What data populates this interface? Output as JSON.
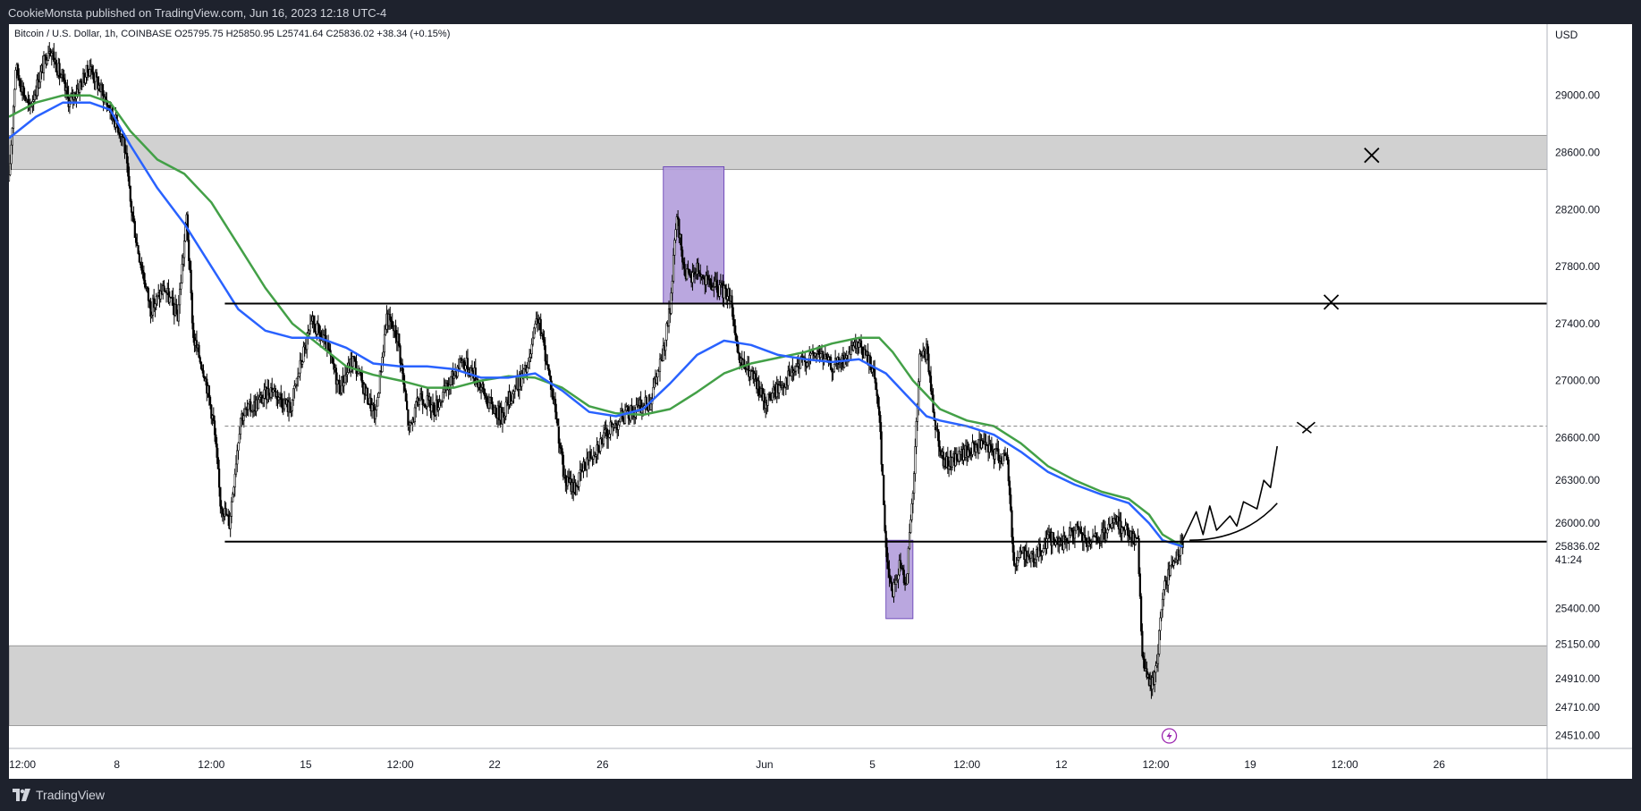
{
  "header": {
    "published": "CookieMonsta published on TradingView.com, Jun 16, 2023 12:18 UTC-4"
  },
  "footer": {
    "brand": "TradingView"
  },
  "chart_data": {
    "type": "candlestick",
    "legend": "Bitcoin / U.S. Dollar, 1h, COINBASE  O25795.75  H25850.95  L25741.64  C25836.02  +38.34 (+0.15%)",
    "currency": "USD",
    "x_range": [
      "2023-05-04T00:00",
      "2023-06-30T00:00"
    ],
    "ylim": [
      24420,
      29500
    ],
    "y_ticks": [
      {
        "value": 29000,
        "label": "29000.00"
      },
      {
        "value": 28600,
        "label": "28600.00"
      },
      {
        "value": 28200,
        "label": "28200.00"
      },
      {
        "value": 27800,
        "label": "27800.00"
      },
      {
        "value": 27400,
        "label": "27400.00"
      },
      {
        "value": 27000,
        "label": "27000.00"
      },
      {
        "value": 26600,
        "label": "26600.00"
      },
      {
        "value": 26300,
        "label": "26300.00"
      },
      {
        "value": 26000,
        "label": "26000.00"
      },
      {
        "value": 25400,
        "label": "25400.00"
      },
      {
        "value": 25150,
        "label": "25150.00"
      },
      {
        "value": 24910,
        "label": "24910.00"
      },
      {
        "value": 24710,
        "label": "24710.00"
      },
      {
        "value": 24510,
        "label": "24510.00"
      }
    ],
    "x_ticks": [
      {
        "x": "2023-05-04T12:00",
        "label": "12:00"
      },
      {
        "x": "2023-05-08T00:00",
        "label": "8"
      },
      {
        "x": "2023-05-11T12:00",
        "label": "12:00"
      },
      {
        "x": "2023-05-15T00:00",
        "label": "15"
      },
      {
        "x": "2023-05-18T12:00",
        "label": "12:00"
      },
      {
        "x": "2023-05-22T00:00",
        "label": "22"
      },
      {
        "x": "2023-05-26T00:00",
        "label": "26"
      },
      {
        "x": "2023-06-01T00:00",
        "label": "Jun"
      },
      {
        "x": "2023-06-05T00:00",
        "label": "5"
      },
      {
        "x": "2023-06-08T12:00",
        "label": "12:00"
      },
      {
        "x": "2023-06-12T00:00",
        "label": "12"
      },
      {
        "x": "2023-06-15T12:00",
        "label": "12:00"
      },
      {
        "x": "2023-06-19T00:00",
        "label": "19"
      },
      {
        "x": "2023-06-22T12:00",
        "label": "12:00"
      },
      {
        "x": "2023-06-26T00:00",
        "label": "26"
      }
    ],
    "last_price": {
      "value": 25836.02,
      "label": "25836.02",
      "countdown": "41:24"
    },
    "price_path": [
      [
        "2023-05-04T00:00",
        28400
      ],
      [
        "2023-05-04T06:00",
        29200
      ],
      [
        "2023-05-04T18:00",
        28900
      ],
      [
        "2023-05-05T12:00",
        29350
      ],
      [
        "2023-05-06T06:00",
        28950
      ],
      [
        "2023-05-07T00:00",
        29200
      ],
      [
        "2023-05-07T18:00",
        28900
      ],
      [
        "2023-05-08T06:00",
        28700
      ],
      [
        "2023-05-08T12:00",
        28250
      ],
      [
        "2023-05-08T18:00",
        27950
      ],
      [
        "2023-05-09T06:00",
        27500
      ],
      [
        "2023-05-09T18:00",
        27650
      ],
      [
        "2023-05-10T06:00",
        27450
      ],
      [
        "2023-05-10T14:00",
        28150
      ],
      [
        "2023-05-10T20:00",
        27300
      ],
      [
        "2023-05-11T06:00",
        27050
      ],
      [
        "2023-05-11T14:00",
        26700
      ],
      [
        "2023-05-11T20:00",
        26150
      ],
      [
        "2023-05-12T04:00",
        26000
      ],
      [
        "2023-05-12T14:00",
        26750
      ],
      [
        "2023-05-13T06:00",
        26850
      ],
      [
        "2023-05-13T18:00",
        26950
      ],
      [
        "2023-05-14T10:00",
        26800
      ],
      [
        "2023-05-14T22:00",
        27200
      ],
      [
        "2023-05-15T06:00",
        27400
      ],
      [
        "2023-05-15T18:00",
        27250
      ],
      [
        "2023-05-16T06:00",
        26950
      ],
      [
        "2023-05-16T18:00",
        27150
      ],
      [
        "2023-05-17T06:00",
        26900
      ],
      [
        "2023-05-17T14:00",
        26750
      ],
      [
        "2023-05-18T00:00",
        27450
      ],
      [
        "2023-05-18T10:00",
        27300
      ],
      [
        "2023-05-18T20:00",
        26650
      ],
      [
        "2023-05-19T06:00",
        26900
      ],
      [
        "2023-05-19T18:00",
        26800
      ],
      [
        "2023-05-20T06:00",
        26950
      ],
      [
        "2023-05-20T18:00",
        27150
      ],
      [
        "2023-05-21T06:00",
        27050
      ],
      [
        "2023-05-21T18:00",
        26850
      ],
      [
        "2023-05-22T06:00",
        26750
      ],
      [
        "2023-05-22T18:00",
        26950
      ],
      [
        "2023-05-23T06:00",
        27100
      ],
      [
        "2023-05-23T14:00",
        27450
      ],
      [
        "2023-05-23T22:00",
        27150
      ],
      [
        "2023-05-24T06:00",
        26800
      ],
      [
        "2023-05-24T14:00",
        26300
      ],
      [
        "2023-05-25T00:00",
        26250
      ],
      [
        "2023-05-25T10:00",
        26450
      ],
      [
        "2023-05-25T20:00",
        26550
      ],
      [
        "2023-05-26T06:00",
        26650
      ],
      [
        "2023-05-26T18:00",
        26750
      ],
      [
        "2023-05-27T06:00",
        26800
      ],
      [
        "2023-05-27T18:00",
        26850
      ],
      [
        "2023-05-28T06:00",
        27200
      ],
      [
        "2023-05-28T12:00",
        27500
      ],
      [
        "2023-05-28T18:00",
        28150
      ],
      [
        "2023-05-29T00:00",
        27800
      ],
      [
        "2023-05-29T06:00",
        27700
      ],
      [
        "2023-05-29T12:00",
        27800
      ],
      [
        "2023-05-29T18:00",
        27700
      ],
      [
        "2023-05-30T06:00",
        27650
      ],
      [
        "2023-05-30T18:00",
        27600
      ],
      [
        "2023-05-31T00:00",
        27150
      ],
      [
        "2023-05-31T12:00",
        27050
      ],
      [
        "2023-06-01T00:00",
        26850
      ],
      [
        "2023-06-01T12:00",
        26950
      ],
      [
        "2023-06-02T00:00",
        27050
      ],
      [
        "2023-06-02T12:00",
        27150
      ],
      [
        "2023-06-03T00:00",
        27200
      ],
      [
        "2023-06-03T12:00",
        27100
      ],
      [
        "2023-06-04T00:00",
        27150
      ],
      [
        "2023-06-04T12:00",
        27250
      ],
      [
        "2023-06-05T00:00",
        27100
      ],
      [
        "2023-06-05T06:00",
        26800
      ],
      [
        "2023-06-05T12:00",
        25800
      ],
      [
        "2023-06-05T18:00",
        25500
      ],
      [
        "2023-06-06T00:00",
        25700
      ],
      [
        "2023-06-06T06:00",
        25600
      ],
      [
        "2023-06-06T12:00",
        26200
      ],
      [
        "2023-06-06T18:00",
        27150
      ],
      [
        "2023-06-07T00:00",
        27200
      ],
      [
        "2023-06-07T08:00",
        26700
      ],
      [
        "2023-06-07T16:00",
        26400
      ],
      [
        "2023-06-08T00:00",
        26450
      ],
      [
        "2023-06-08T12:00",
        26500
      ],
      [
        "2023-06-09T00:00",
        26550
      ],
      [
        "2023-06-09T12:00",
        26500
      ],
      [
        "2023-06-10T00:00",
        26450
      ],
      [
        "2023-06-10T06:00",
        25700
      ],
      [
        "2023-06-10T12:00",
        25800
      ],
      [
        "2023-06-11T00:00",
        25750
      ],
      [
        "2023-06-11T12:00",
        25900
      ],
      [
        "2023-06-12T00:00",
        25850
      ],
      [
        "2023-06-12T12:00",
        25950
      ],
      [
        "2023-06-13T00:00",
        25850
      ],
      [
        "2023-06-13T12:00",
        25900
      ],
      [
        "2023-06-14T00:00",
        26000
      ],
      [
        "2023-06-14T12:00",
        25950
      ],
      [
        "2023-06-14T20:00",
        25850
      ],
      [
        "2023-06-15T00:00",
        25100
      ],
      [
        "2023-06-15T06:00",
        24850
      ],
      [
        "2023-06-15T12:00",
        24950
      ],
      [
        "2023-06-15T18:00",
        25500
      ],
      [
        "2023-06-16T00:00",
        25650
      ],
      [
        "2023-06-16T06:00",
        25750
      ],
      [
        "2023-06-16T12:00",
        25836
      ]
    ],
    "ma_fast": [
      [
        "2023-05-04T00:00",
        28700
      ],
      [
        "2023-05-05T00:00",
        28850
      ],
      [
        "2023-05-06T00:00",
        28950
      ],
      [
        "2023-05-07T00:00",
        28950
      ],
      [
        "2023-05-07T18:00",
        28900
      ],
      [
        "2023-05-08T12:00",
        28650
      ],
      [
        "2023-05-09T12:00",
        28350
      ],
      [
        "2023-05-10T12:00",
        28100
      ],
      [
        "2023-05-11T12:00",
        27800
      ],
      [
        "2023-05-12T12:00",
        27500
      ],
      [
        "2023-05-13T12:00",
        27350
      ],
      [
        "2023-05-14T12:00",
        27300
      ],
      [
        "2023-05-15T12:00",
        27300
      ],
      [
        "2023-05-16T12:00",
        27230
      ],
      [
        "2023-05-17T12:00",
        27120
      ],
      [
        "2023-05-18T12:00",
        27100
      ],
      [
        "2023-05-19T12:00",
        27100
      ],
      [
        "2023-05-20T12:00",
        27080
      ],
      [
        "2023-05-21T12:00",
        27020
      ],
      [
        "2023-05-22T12:00",
        27020
      ],
      [
        "2023-05-23T12:00",
        27050
      ],
      [
        "2023-05-24T12:00",
        26930
      ],
      [
        "2023-05-25T12:00",
        26780
      ],
      [
        "2023-05-26T12:00",
        26750
      ],
      [
        "2023-05-27T12:00",
        26800
      ],
      [
        "2023-05-28T12:00",
        26980
      ],
      [
        "2023-05-29T12:00",
        27180
      ],
      [
        "2023-05-30T12:00",
        27280
      ],
      [
        "2023-05-31T12:00",
        27250
      ],
      [
        "2023-06-01T12:00",
        27180
      ],
      [
        "2023-06-02T12:00",
        27150
      ],
      [
        "2023-06-03T12:00",
        27130
      ],
      [
        "2023-06-04T12:00",
        27150
      ],
      [
        "2023-06-05T12:00",
        27050
      ],
      [
        "2023-06-06T06:00",
        26900
      ],
      [
        "2023-06-07T00:00",
        26750
      ],
      [
        "2023-06-07T12:00",
        26720
      ],
      [
        "2023-06-08T12:00",
        26680
      ],
      [
        "2023-06-09T12:00",
        26620
      ],
      [
        "2023-06-10T12:00",
        26500
      ],
      [
        "2023-06-11T12:00",
        26360
      ],
      [
        "2023-06-12T12:00",
        26270
      ],
      [
        "2023-06-13T12:00",
        26200
      ],
      [
        "2023-06-14T12:00",
        26140
      ],
      [
        "2023-06-15T06:00",
        26000
      ],
      [
        "2023-06-15T18:00",
        25880
      ],
      [
        "2023-06-16T12:00",
        25836
      ]
    ],
    "ma_slow": [
      [
        "2023-05-04T00:00",
        28850
      ],
      [
        "2023-05-05T00:00",
        28950
      ],
      [
        "2023-05-06T00:00",
        29000
      ],
      [
        "2023-05-07T00:00",
        29000
      ],
      [
        "2023-05-07T18:00",
        28950
      ],
      [
        "2023-05-08T12:00",
        28750
      ],
      [
        "2023-05-09T12:00",
        28550
      ],
      [
        "2023-05-10T12:00",
        28450
      ],
      [
        "2023-05-11T12:00",
        28250
      ],
      [
        "2023-05-12T12:00",
        27950
      ],
      [
        "2023-05-13T12:00",
        27650
      ],
      [
        "2023-05-14T12:00",
        27400
      ],
      [
        "2023-05-15T12:00",
        27250
      ],
      [
        "2023-05-16T12:00",
        27100
      ],
      [
        "2023-05-17T12:00",
        27040
      ],
      [
        "2023-05-18T12:00",
        27000
      ],
      [
        "2023-05-19T12:00",
        26950
      ],
      [
        "2023-05-20T12:00",
        26950
      ],
      [
        "2023-05-21T12:00",
        27000
      ],
      [
        "2023-05-22T12:00",
        27030
      ],
      [
        "2023-05-23T12:00",
        27020
      ],
      [
        "2023-05-24T12:00",
        26950
      ],
      [
        "2023-05-25T12:00",
        26820
      ],
      [
        "2023-05-26T12:00",
        26770
      ],
      [
        "2023-05-27T12:00",
        26760
      ],
      [
        "2023-05-28T12:00",
        26800
      ],
      [
        "2023-05-29T12:00",
        26920
      ],
      [
        "2023-05-30T12:00",
        27050
      ],
      [
        "2023-05-31T12:00",
        27120
      ],
      [
        "2023-06-01T12:00",
        27160
      ],
      [
        "2023-06-02T12:00",
        27200
      ],
      [
        "2023-06-03T12:00",
        27260
      ],
      [
        "2023-06-04T12:00",
        27300
      ],
      [
        "2023-06-05T06:00",
        27300
      ],
      [
        "2023-06-05T18:00",
        27200
      ],
      [
        "2023-06-06T12:00",
        27000
      ],
      [
        "2023-06-07T12:00",
        26800
      ],
      [
        "2023-06-08T12:00",
        26720
      ],
      [
        "2023-06-09T12:00",
        26680
      ],
      [
        "2023-06-10T12:00",
        26560
      ],
      [
        "2023-06-11T12:00",
        26400
      ],
      [
        "2023-06-12T12:00",
        26300
      ],
      [
        "2023-06-13T12:00",
        26220
      ],
      [
        "2023-06-14T12:00",
        26170
      ],
      [
        "2023-06-15T06:00",
        26060
      ],
      [
        "2023-06-15T18:00",
        25920
      ],
      [
        "2023-06-16T12:00",
        25836
      ]
    ],
    "zones": [
      {
        "y1": 28480,
        "y2": 28720,
        "x1": "2023-05-04T00:00",
        "x2": "2023-06-30T00:00",
        "color": "#d1d1d1"
      },
      {
        "y1": 24580,
        "y2": 25140,
        "x1": "2023-05-04T00:00",
        "x2": "2023-06-30T00:00",
        "color": "#d1d1d1"
      }
    ],
    "boxes": [
      {
        "x1": "2023-05-28T06:00",
        "x2": "2023-05-30T12:00",
        "y1": 27540,
        "y2": 28500,
        "color": "#b39ddb"
      },
      {
        "x1": "2023-06-05T12:00",
        "x2": "2023-06-06T12:00",
        "y1": 25330,
        "y2": 25880,
        "color": "#b39ddb"
      }
    ],
    "hlines": [
      {
        "y": 27540,
        "x1": "2023-05-12T00:00",
        "x2": "2023-06-30T00:00",
        "style": "solid"
      },
      {
        "y": 25870,
        "x1": "2023-05-12T00:00",
        "x2": "2023-06-30T00:00",
        "style": "solid"
      },
      {
        "y": 26680,
        "x1": "2023-05-12T00:00",
        "x2": "2023-06-30T00:00",
        "style": "dashed"
      }
    ],
    "x_marks": [
      {
        "x": "2023-06-23T12:00",
        "y": 28580,
        "kind": "X"
      },
      {
        "x": "2023-06-22T00:00",
        "y": 27550,
        "kind": "X"
      },
      {
        "x": "2023-06-21T00:00",
        "y": 26670,
        "kind": "half-x"
      }
    ],
    "projection": [
      [
        "2023-06-16T12:00",
        25880
      ],
      [
        "2023-06-17T00:00",
        26080
      ],
      [
        "2023-06-17T06:00",
        25920
      ],
      [
        "2023-06-17T12:00",
        26120
      ],
      [
        "2023-06-17T18:00",
        25950
      ],
      [
        "2023-06-18T06:00",
        26050
      ],
      [
        "2023-06-18T12:00",
        25980
      ],
      [
        "2023-06-18T18:00",
        26150
      ],
      [
        "2023-06-19T06:00",
        26100
      ],
      [
        "2023-06-19T12:00",
        26300
      ],
      [
        "2023-06-19T18:00",
        26250
      ],
      [
        "2023-06-20T00:00",
        26540
      ]
    ],
    "colors": {
      "ma_fast": "#2962ff",
      "ma_slow": "#43a047",
      "candles": "#000000"
    },
    "grid": false
  }
}
